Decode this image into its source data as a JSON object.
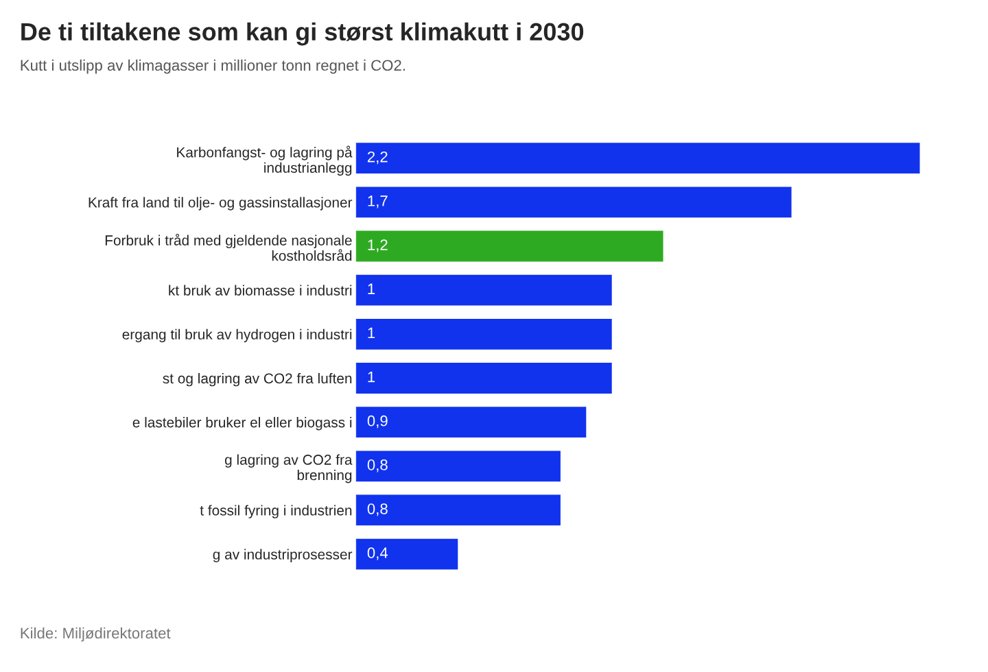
{
  "chart_data": {
    "type": "bar",
    "orientation": "horizontal",
    "title": "De ti tiltakene som kan gi størst klimakutt i 2030",
    "subtitle": "Kutt i utslipp av klimagasser i millioner tonn regnet i CO2.",
    "categories": [
      "Karbonfangst- og lagring på\nindustrianlegg",
      "Kraft fra land til olje- og gassinstallasjoner",
      "Forbruk i tråd med gjeldende nasjonale\nkostholdsråd",
      "kt bruk av biomasse i industri",
      "ergang til bruk av hydrogen i industri",
      "st og lagring av CO2 fra luften",
      "e lastebiler bruker el eller biogass i",
      "g lagring av CO2 fra\nbrenning",
      "t fossil fyring i industrien",
      "g av industriprosesser"
    ],
    "values": [
      2.2,
      1.7,
      1.2,
      1,
      1,
      1,
      0.9,
      0.8,
      0.8,
      0.4
    ],
    "value_labels": [
      "2,2",
      "1,7",
      "1,2",
      "1",
      "1",
      "1",
      "0,9",
      "0,8",
      "0,8",
      "0,4"
    ],
    "colors": [
      "#1133ee",
      "#1133ee",
      "#2eaa22",
      "#1133ee",
      "#1133ee",
      "#1133ee",
      "#1133ee",
      "#1133ee",
      "#1133ee",
      "#1133ee"
    ],
    "tick_labels": "y",
    "grid": false,
    "annotations": [
      "Kilde: Miljødirektoratet"
    ]
  }
}
